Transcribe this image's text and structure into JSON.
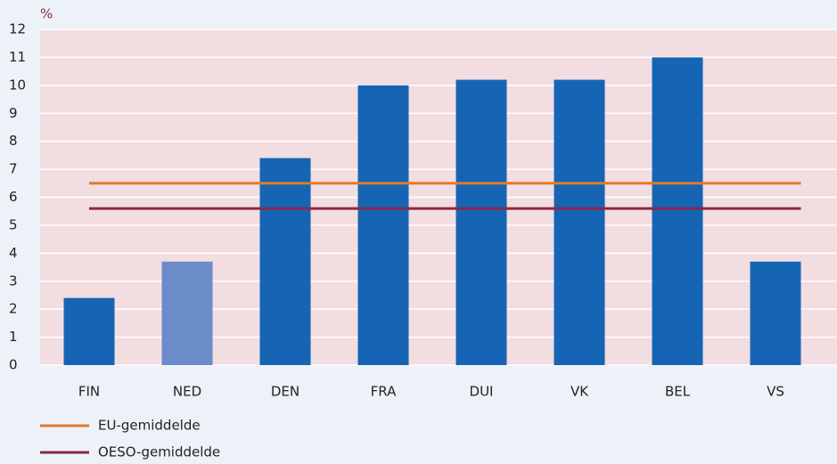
{
  "chart_data": {
    "type": "bar",
    "y_label": "%",
    "categories": [
      "FIN",
      "NED",
      "DEN",
      "FRA",
      "DUI",
      "VK",
      "BEL",
      "VS"
    ],
    "values": [
      2.4,
      3.7,
      7.4,
      10.0,
      10.2,
      10.2,
      11.0,
      3.7
    ],
    "colors": [
      "#1565b4",
      "#6a8cc8",
      "#1565b4",
      "#1565b4",
      "#1565b4",
      "#1565b4",
      "#1565b4",
      "#1565b4"
    ],
    "lines": [
      {
        "name": "EU-gemiddelde",
        "color": "#e07b2a",
        "value": 6.5
      },
      {
        "name": "OESO-gemiddelde",
        "color": "#8b2846",
        "value": 5.6
      }
    ],
    "ylim": [
      0,
      12
    ],
    "yticks": [
      0,
      1,
      2,
      3,
      4,
      5,
      6,
      7,
      8,
      9,
      10,
      11,
      12
    ],
    "grid": true
  }
}
